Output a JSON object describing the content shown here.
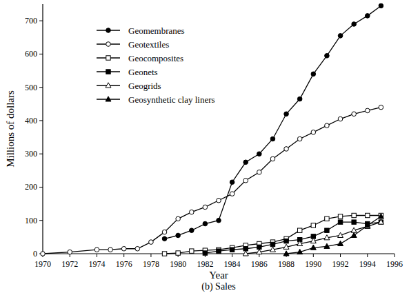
{
  "chart_data": {
    "type": "line",
    "caption": "(b) Sales",
    "x_label": "Year",
    "y_label": "Millions of dollars",
    "xlim": [
      1970,
      1996
    ],
    "xticks": [
      1970,
      1972,
      1974,
      1976,
      1978,
      1980,
      1982,
      1984,
      1986,
      1988,
      1990,
      1992,
      1994,
      1996
    ],
    "ylim": [
      0,
      750
    ],
    "yticks": [
      0,
      100,
      200,
      300,
      400,
      500,
      600,
      700
    ],
    "legend": "top-left",
    "grid": false,
    "series": [
      {
        "name": "Geomembranes",
        "color": "#000000",
        "marker": "circle",
        "line_style": "solid",
        "x": [
          1979,
          1980,
          1981,
          1982,
          1983,
          1984,
          1985,
          1986,
          1987,
          1988,
          1989,
          1990,
          1991,
          1992,
          1993,
          1994,
          1995
        ],
        "values": [
          45,
          55,
          70,
          90,
          100,
          215,
          275,
          300,
          345,
          420,
          465,
          540,
          595,
          655,
          690,
          715,
          745
        ]
      },
      {
        "name": "Geotextiles",
        "color": "#000000",
        "marker": "circle-open",
        "line_style": "solid",
        "x": [
          1970,
          1972,
          1974,
          1975,
          1976,
          1977,
          1978,
          1979,
          1980,
          1981,
          1982,
          1983,
          1984,
          1985,
          1986,
          1987,
          1988,
          1989,
          1990,
          1991,
          1992,
          1993,
          1994,
          1995
        ],
        "values": [
          0,
          5,
          12,
          12,
          15,
          15,
          35,
          65,
          105,
          125,
          140,
          160,
          180,
          220,
          245,
          285,
          315,
          345,
          365,
          385,
          405,
          420,
          430,
          440
        ]
      },
      {
        "name": "Geocomposites",
        "color": "#000000",
        "marker": "square-open",
        "line_style": "solid",
        "x": [
          1979,
          1980,
          1981,
          1982,
          1983,
          1984,
          1985,
          1986,
          1987,
          1988,
          1989,
          1990,
          1991,
          1992,
          1993,
          1994,
          1995
        ],
        "values": [
          0,
          2,
          8,
          10,
          12,
          18,
          25,
          30,
          35,
          45,
          70,
          85,
          105,
          112,
          115,
          115,
          115
        ]
      },
      {
        "name": "Geonets",
        "color": "#000000",
        "marker": "square",
        "line_style": "solid",
        "x": [
          1982,
          1983,
          1984,
          1985,
          1986,
          1987,
          1988,
          1989,
          1990,
          1991,
          1992,
          1993,
          1994,
          1995
        ],
        "values": [
          2,
          8,
          12,
          15,
          20,
          28,
          38,
          42,
          52,
          70,
          95,
          95,
          90,
          95
        ]
      },
      {
        "name": "Geogrids",
        "color": "#000000",
        "marker": "triangle-open",
        "line_style": "solid",
        "x": [
          1985,
          1986,
          1987,
          1988,
          1989,
          1990,
          1991,
          1992,
          1993,
          1994,
          1995
        ],
        "values": [
          0,
          5,
          12,
          20,
          30,
          38,
          48,
          55,
          70,
          82,
          95
        ]
      },
      {
        "name": "Geosynthetic clay liners",
        "color": "#000000",
        "marker": "triangle",
        "line_style": "solid",
        "x": [
          1988,
          1989,
          1990,
          1991,
          1992,
          1993,
          1994,
          1995
        ],
        "values": [
          0,
          5,
          18,
          22,
          30,
          55,
          85,
          112
        ]
      }
    ]
  }
}
